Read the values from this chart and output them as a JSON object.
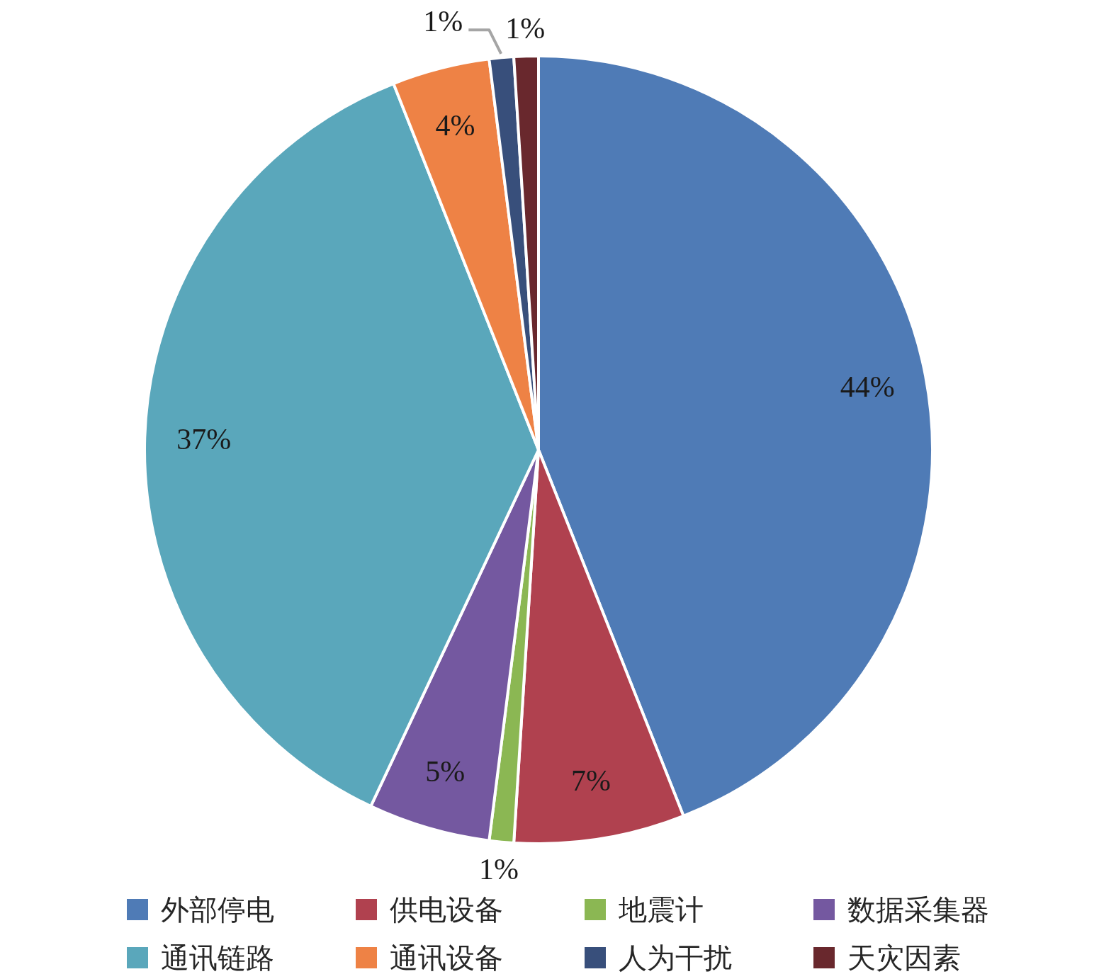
{
  "chart_data": {
    "type": "pie",
    "categories": [
      "外部停电",
      "供电设备",
      "地震计",
      "数据采集器",
      "通讯链路",
      "通讯设备",
      "人为干扰",
      "天灾因素"
    ],
    "values": [
      44,
      7,
      1,
      5,
      37,
      4,
      1,
      1
    ],
    "colors": [
      "#4f7bb6",
      "#b0414f",
      "#8bb753",
      "#7458a0",
      "#5aa7bb",
      "#ee8245",
      "#384f7b",
      "#69282d"
    ],
    "value_labels": [
      "44%",
      "7%",
      "1%",
      "5%",
      "37%",
      "4%",
      "1%",
      "1%"
    ],
    "legend": "bottom"
  }
}
